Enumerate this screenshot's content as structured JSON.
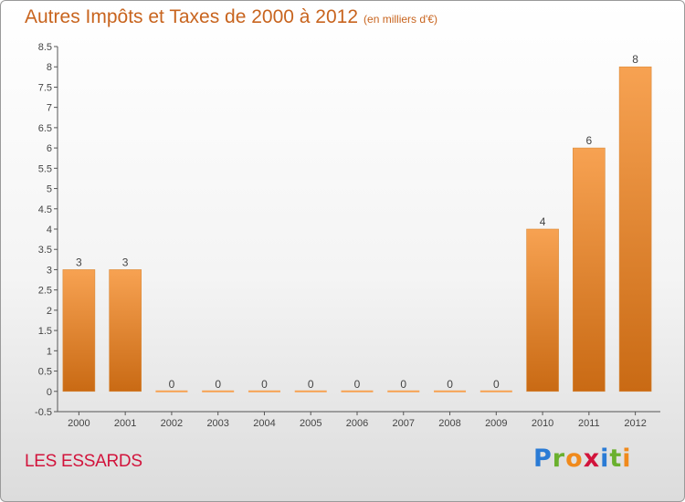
{
  "title": "Autres Impôts et Taxes de 2000 à 2012",
  "subtitle": "(en milliers d'€)",
  "commune": "LES ESSARDS",
  "logo": {
    "letters": [
      "P",
      "r",
      "o",
      "x",
      "i",
      "t",
      "i"
    ],
    "colors": [
      "#2a7bd5",
      "#6ab02e",
      "#f08a1c",
      "#d2143c",
      "#2a7bd5",
      "#6ab02e",
      "#f08a1c"
    ]
  },
  "colors": {
    "bar_top": "#f7a252",
    "bar_bottom": "#c96a14",
    "title": "#c8641e",
    "commune": "#d2143c",
    "axis": "#555555"
  },
  "chart_data": {
    "type": "bar",
    "categories": [
      "2000",
      "2001",
      "2002",
      "2003",
      "2004",
      "2005",
      "2006",
      "2007",
      "2008",
      "2009",
      "2010",
      "2011",
      "2012"
    ],
    "values": [
      3,
      3,
      0,
      0,
      0,
      0,
      0,
      0,
      0,
      0,
      4,
      6,
      8
    ],
    "value_labels": [
      "3",
      "3",
      "0",
      "0",
      "0",
      "0",
      "0",
      "0",
      "0",
      "0",
      "4",
      "6",
      "8"
    ],
    "y_ticks": [
      "-0.5",
      "0",
      "0.5",
      "1",
      "1.5",
      "2",
      "2.5",
      "3",
      "3.5",
      "4",
      "4.5",
      "5",
      "5.5",
      "6",
      "6.5",
      "7",
      "7.5",
      "8",
      "8.5"
    ],
    "ylim": [
      -0.5,
      8.5
    ],
    "title": "Autres Impôts et Taxes de 2000 à 2012",
    "xlabel": "",
    "ylabel": "",
    "grid": false
  }
}
